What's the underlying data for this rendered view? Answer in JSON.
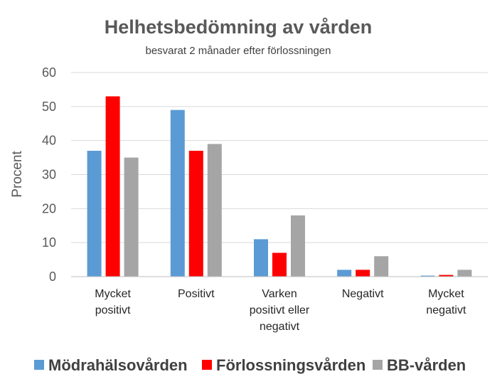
{
  "chart_data": {
    "type": "bar",
    "title": "Helhetsbedömning av vården",
    "subtitle": "besvarat 2 månader efter förlossningen",
    "ylabel": "Procent",
    "xlabel": "",
    "ylim": [
      0,
      60
    ],
    "yticks": [
      0,
      10,
      20,
      30,
      40,
      50,
      60
    ],
    "grid": true,
    "legend_position": "bottom",
    "categories": [
      [
        "Mycket",
        "positivt"
      ],
      [
        "Positivt"
      ],
      [
        "Varken",
        "positivt eller",
        "negativt"
      ],
      [
        "Negativt"
      ],
      [
        "Mycket",
        "negativt"
      ]
    ],
    "series": [
      {
        "name": "Mödrahälsovården",
        "color": "#5b9bd5",
        "values": [
          37,
          49,
          11,
          2,
          0.3
        ]
      },
      {
        "name": "Förlossningsvården",
        "color": "#ff0000",
        "values": [
          53,
          37,
          7,
          2,
          0.5
        ]
      },
      {
        "name": "BB-vården",
        "color": "#a5a5a5",
        "values": [
          35,
          39,
          18,
          6,
          2
        ]
      }
    ]
  }
}
